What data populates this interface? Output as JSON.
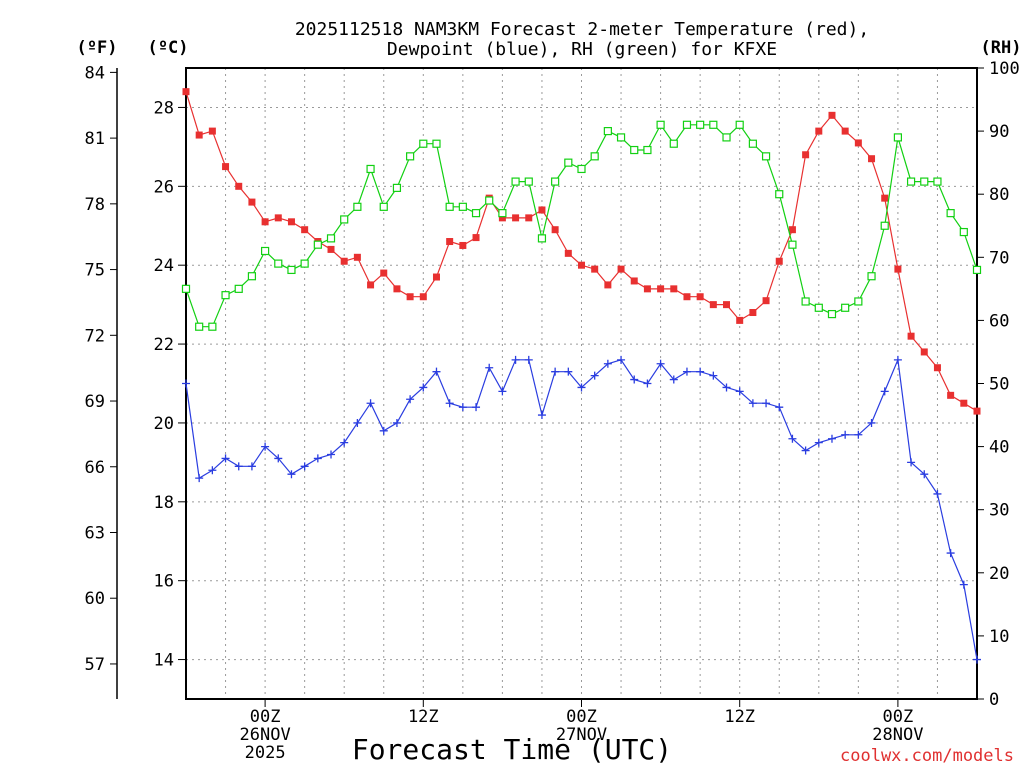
{
  "title_line1": "2025112518 NAM3KM Forecast 2-meter Temperature (red),",
  "title_line2": "Dewpoint (blue), RH (green) for KFXE",
  "unit_f": "(ºF)",
  "unit_c": "(ºC)",
  "unit_rh": "(RH)",
  "x_axis_label": "Forecast Time (UTC)",
  "watermark": "coolwx.com/models",
  "colors": {
    "temperature": "#e83030",
    "dewpoint": "#2a3de0",
    "rh": "#12d012"
  },
  "chart_data": {
    "type": "line",
    "title": "2025112518 NAM3KM Forecast 2-meter Temperature (red), Dewpoint (blue), RH (green) for KFXE",
    "xlabel": "Forecast Time (UTC)",
    "x_unit": "hours from 2025112518",
    "xlim": [
      0,
      60
    ],
    "x": [
      0,
      1,
      2,
      3,
      4,
      5,
      6,
      7,
      8,
      9,
      10,
      11,
      12,
      13,
      14,
      15,
      16,
      17,
      18,
      19,
      20,
      21,
      22,
      23,
      24,
      25,
      26,
      27,
      28,
      29,
      30,
      31,
      32,
      33,
      34,
      35,
      36,
      37,
      38,
      39,
      40,
      41,
      42,
      43,
      44,
      45,
      46,
      47,
      48,
      49,
      50,
      51,
      52,
      53,
      54,
      55,
      56,
      57,
      58,
      59,
      60
    ],
    "x_ticks": [
      {
        "x": 6,
        "lines": [
          "00Z",
          "26NOV",
          "2025"
        ]
      },
      {
        "x": 18,
        "lines": [
          "12Z"
        ]
      },
      {
        "x": 30,
        "lines": [
          "00Z",
          "27NOV"
        ]
      },
      {
        "x": 42,
        "lines": [
          "12Z"
        ]
      },
      {
        "x": 54,
        "lines": [
          "00Z",
          "28NOV"
        ]
      }
    ],
    "left_axis_c": {
      "label": "(ºC)",
      "ylim": [
        13.0,
        29.0
      ],
      "ticks": [
        14,
        16,
        18,
        20,
        22,
        24,
        26,
        28
      ]
    },
    "left_axis_f": {
      "label": "(ºF)",
      "ticks": [
        57,
        60,
        63,
        66,
        69,
        72,
        75,
        78,
        81,
        84
      ]
    },
    "right_axis_rh": {
      "label": "(RH)",
      "ylim": [
        0,
        100
      ],
      "ticks": [
        0,
        10,
        20,
        30,
        40,
        50,
        60,
        70,
        80,
        90,
        100
      ]
    },
    "series": [
      {
        "name": "Temperature",
        "axis": "celsius",
        "values": [
          28.4,
          27.3,
          27.4,
          26.5,
          26.0,
          25.6,
          25.1,
          25.2,
          25.1,
          24.9,
          24.6,
          24.4,
          24.1,
          24.2,
          23.5,
          23.8,
          23.4,
          23.2,
          23.2,
          23.7,
          24.6,
          24.5,
          24.7,
          25.7,
          25.2,
          25.2,
          25.2,
          25.4,
          24.9,
          24.3,
          24.0,
          23.9,
          23.5,
          23.9,
          23.6,
          23.4,
          23.4,
          23.4,
          23.2,
          23.2,
          23.0,
          23.0,
          22.6,
          22.8,
          23.1,
          24.1,
          24.9,
          26.8,
          27.4,
          27.8,
          27.4,
          27.1,
          26.7,
          25.7,
          23.9,
          22.2,
          21.8,
          21.4,
          20.7,
          20.5,
          20.3
        ]
      },
      {
        "name": "Dewpoint",
        "axis": "celsius",
        "values": [
          21.0,
          18.6,
          18.8,
          19.1,
          18.9,
          18.9,
          19.4,
          19.1,
          18.7,
          18.9,
          19.1,
          19.2,
          19.5,
          20.0,
          20.5,
          19.8,
          20.0,
          20.6,
          20.9,
          21.3,
          20.5,
          20.4,
          20.4,
          21.4,
          20.8,
          21.6,
          21.6,
          20.2,
          21.3,
          21.3,
          20.9,
          21.2,
          21.5,
          21.6,
          21.1,
          21.0,
          21.5,
          21.1,
          21.3,
          21.3,
          21.2,
          20.9,
          20.8,
          20.5,
          20.5,
          20.4,
          19.6,
          19.3,
          19.5,
          19.6,
          19.7,
          19.7,
          20.0,
          20.8,
          21.6,
          19.0,
          18.7,
          18.2,
          16.7,
          15.9,
          14.0
        ]
      },
      {
        "name": "Relative Humidity",
        "axis": "rh",
        "values": [
          65,
          59,
          59,
          64,
          65,
          67,
          71,
          69,
          68,
          69,
          72,
          73,
          76,
          78,
          84,
          78,
          81,
          86,
          88,
          88,
          78,
          78,
          77,
          79,
          77,
          82,
          82,
          73,
          82,
          85,
          84,
          86,
          90,
          89,
          87,
          87,
          91,
          88,
          91,
          91,
          91,
          89,
          91,
          88,
          86,
          80,
          72,
          63,
          62,
          61,
          62,
          63,
          67,
          75,
          89,
          82,
          82,
          82,
          77,
          74,
          68
        ]
      }
    ]
  }
}
